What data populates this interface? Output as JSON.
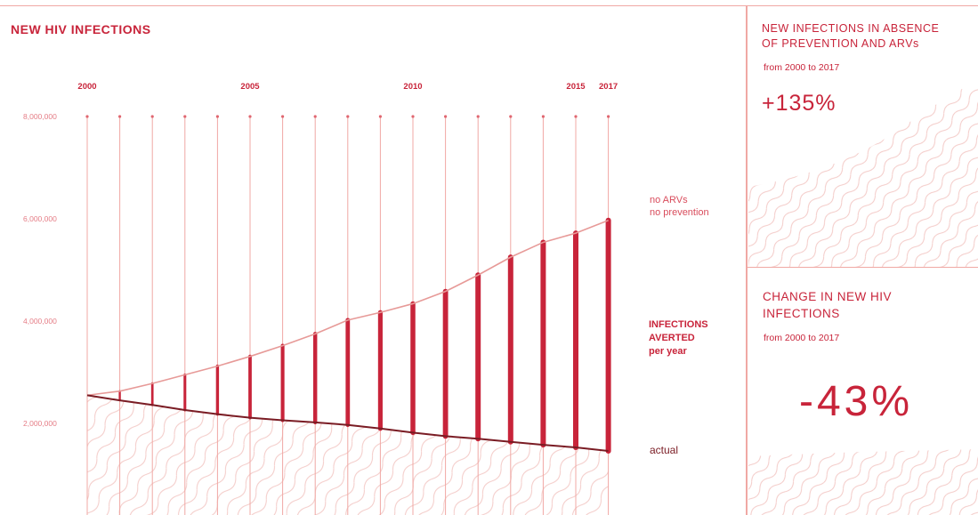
{
  "colors": {
    "accent": "#c8243a",
    "light_accent": "#f0a8a4",
    "actual_line": "#7a1c24",
    "pattern": "#f3c9c6"
  },
  "left_panel": {
    "title": "NEW HIV INFECTIONS"
  },
  "right_top": {
    "title": "NEW INFECTIONS IN ABSENCE\nOF PREVENTION AND ARVs",
    "subtitle": "from 2000 to 2017",
    "value": "+135%"
  },
  "right_bottom": {
    "title": "CHANGE IN NEW HIV\nINFECTIONS",
    "subtitle": "from 2000 to 2017",
    "value": "-43%"
  },
  "chart_data": {
    "type": "line",
    "title": "NEW HIV INFECTIONS",
    "x": [
      2000,
      2001,
      2002,
      2003,
      2004,
      2005,
      2006,
      2007,
      2008,
      2009,
      2010,
      2011,
      2012,
      2013,
      2014,
      2015,
      2016,
      2017
    ],
    "x_tick_labels": [
      "2000",
      "2005",
      "2010",
      "2015",
      "2017"
    ],
    "y_tick_labels": [
      "8,000,000",
      "6,000,000",
      "4,000,000",
      "2,000,000"
    ],
    "ylim": [
      0,
      8000000
    ],
    "series": [
      {
        "name": "no ARVs\nno prevention",
        "values": [
          2550000,
          2630000,
          2780000,
          2950000,
          3120000,
          3310000,
          3520000,
          3750000,
          4020000,
          4170000,
          4340000,
          4580000,
          4900000,
          5250000,
          5540000,
          5720000,
          5970000,
          5970000
        ]
      },
      {
        "name": "actual",
        "values": [
          2550000,
          2450000,
          2360000,
          2260000,
          2180000,
          2110000,
          2060000,
          2020000,
          1970000,
          1900000,
          1820000,
          1750000,
          1700000,
          1640000,
          1580000,
          1530000,
          1460000,
          1460000
        ]
      }
    ],
    "annotation": {
      "line1": "INFECTIONS",
      "line2": "AVERTED",
      "line3": "per year"
    },
    "grid": true
  }
}
